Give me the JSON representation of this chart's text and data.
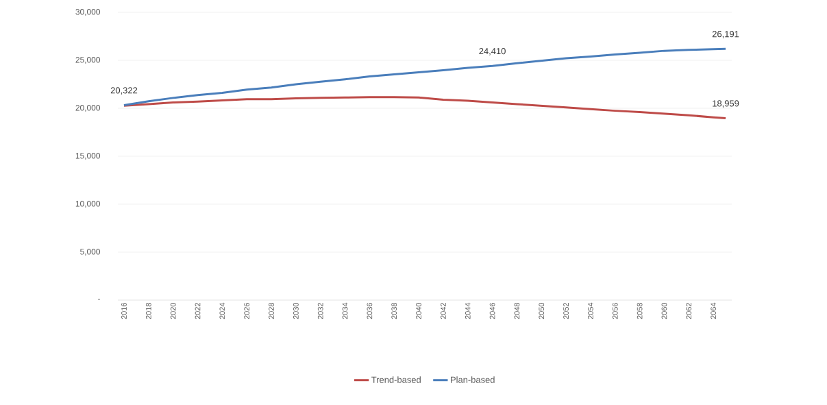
{
  "chart_data": {
    "type": "line",
    "xlim": [
      2015.5,
      2065.5
    ],
    "xticks": [
      2016,
      2018,
      2020,
      2022,
      2024,
      2026,
      2028,
      2030,
      2032,
      2034,
      2036,
      2038,
      2040,
      2042,
      2044,
      2046,
      2048,
      2050,
      2052,
      2054,
      2056,
      2058,
      2060,
      2062,
      2064
    ],
    "ylim": [
      0,
      30000
    ],
    "yticks": [
      {
        "value": 0,
        "label": "-"
      },
      {
        "value": 5000,
        "label": "5,000"
      },
      {
        "value": 10000,
        "label": "10,000"
      },
      {
        "value": 15000,
        "label": "15,000"
      },
      {
        "value": 20000,
        "label": "20,000"
      },
      {
        "value": 25000,
        "label": "25,000"
      },
      {
        "value": 30000,
        "label": "30,000"
      }
    ],
    "series": [
      {
        "name": "Trend-based",
        "color": "#be4b48",
        "x": [
          2016,
          2018,
          2020,
          2022,
          2024,
          2026,
          2028,
          2030,
          2032,
          2034,
          2036,
          2038,
          2040,
          2042,
          2044,
          2046,
          2048,
          2050,
          2052,
          2054,
          2056,
          2058,
          2060,
          2062,
          2064,
          2065
        ],
        "values": [
          20260,
          20430,
          20600,
          20690,
          20820,
          20950,
          20950,
          21030,
          21080,
          21120,
          21160,
          21160,
          21120,
          20900,
          20780,
          20600,
          20430,
          20260,
          20090,
          19910,
          19740,
          19610,
          19440,
          19270,
          19050,
          18959
        ]
      },
      {
        "name": "Plan-based",
        "color": "#4a7ebb",
        "x": [
          2016,
          2018,
          2020,
          2022,
          2024,
          2026,
          2028,
          2030,
          2032,
          2034,
          2036,
          2038,
          2040,
          2042,
          2044,
          2046,
          2048,
          2050,
          2052,
          2054,
          2056,
          2058,
          2060,
          2062,
          2064,
          2065
        ],
        "values": [
          20322,
          20730,
          21080,
          21380,
          21600,
          21940,
          22160,
          22500,
          22760,
          23020,
          23320,
          23530,
          23750,
          23970,
          24220,
          24410,
          24700,
          24960,
          25220,
          25390,
          25600,
          25780,
          25990,
          26080,
          26160,
          26191
        ]
      }
    ],
    "annotations": [
      {
        "text": "20,322",
        "x": 2016,
        "y": 20322
      },
      {
        "text": "24,410",
        "x": 2046,
        "y": 24410
      },
      {
        "text": "26,191",
        "x": 2065,
        "y": 26191
      },
      {
        "text": "18,959",
        "x": 2065,
        "y": 18959
      }
    ],
    "grid": "y",
    "legend": "bottom",
    "line_style": "solid",
    "marker": "none"
  }
}
